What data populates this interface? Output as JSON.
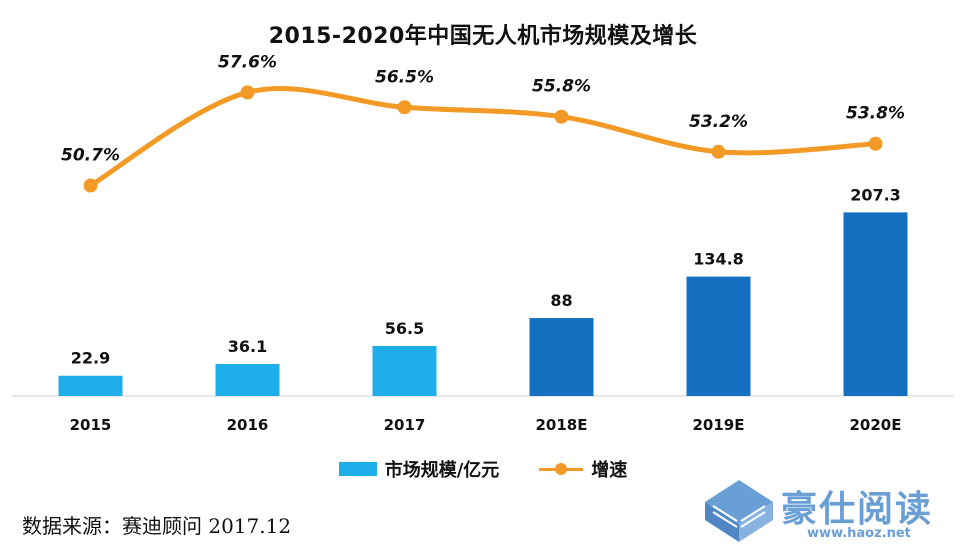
{
  "chart_data": {
    "type": "bar",
    "title": "2015-2020年中国无人机市场规模及增长",
    "categories": [
      "2015",
      "2016",
      "2017",
      "2018E",
      "2019E",
      "2020E"
    ],
    "series": [
      {
        "name": "市场规模/亿元",
        "type": "bar",
        "values": [
          22.9,
          36.1,
          56.5,
          88,
          134.8,
          207.3
        ],
        "value_labels": [
          "22.9",
          "36.1",
          "56.5",
          "88",
          "134.8",
          "207.3"
        ],
        "colors": [
          "#1eaeea",
          "#1eaeea",
          "#1eaeea",
          "#1570c2",
          "#1570c2",
          "#1570c2"
        ]
      },
      {
        "name": "增速",
        "type": "line",
        "values": [
          50.7,
          57.6,
          56.5,
          55.8,
          53.2,
          53.8
        ],
        "value_labels": [
          "50.7%",
          "57.6%",
          "56.5%",
          "55.8%",
          "53.2%",
          "53.8%"
        ],
        "color": "#f39a26"
      }
    ],
    "ylim": [
      0,
      210
    ],
    "y2lim": [
      40,
      60
    ],
    "grid": false,
    "legend": "bottom"
  },
  "source": "数据来源：赛迪顾问 2017.12",
  "watermark": {
    "text": "豪仕阅读",
    "url": "www.haoz.net",
    "color": "#6a9fd6"
  }
}
